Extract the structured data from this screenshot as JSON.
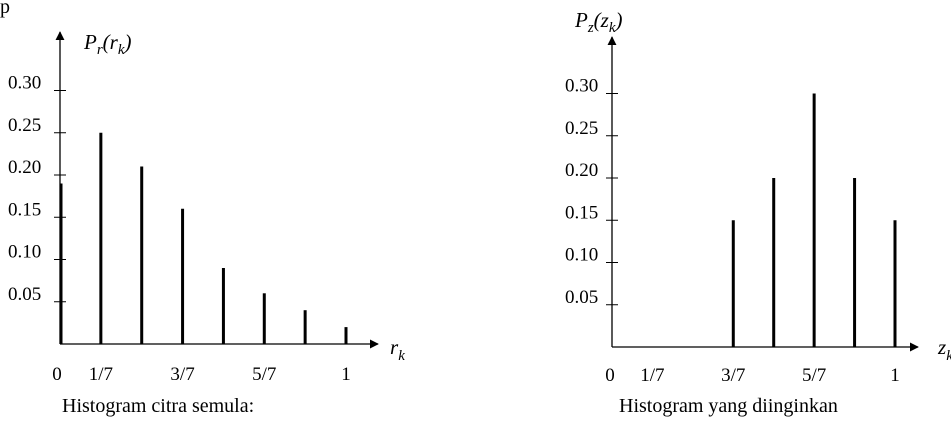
{
  "header_fragment": "p",
  "chart_data": [
    {
      "type": "bar",
      "x": [
        0,
        0.142857,
        0.285714,
        0.428571,
        0.571429,
        0.714286,
        0.857143,
        1
      ],
      "values": [
        0.19,
        0.25,
        0.21,
        0.16,
        0.09,
        0.06,
        0.04,
        0.02
      ],
      "x_ticks": [
        {
          "value": 0,
          "label": "0"
        },
        {
          "value": 0.142857,
          "label": "1/7"
        },
        {
          "value": 0.428571,
          "label": "3/7"
        },
        {
          "value": 0.714286,
          "label": "5/7"
        },
        {
          "value": 1,
          "label": "1"
        }
      ],
      "y_ticks": [
        {
          "value": 0.05,
          "label": "0.05"
        },
        {
          "value": 0.1,
          "label": "0.10"
        },
        {
          "value": 0.15,
          "label": "0.15"
        },
        {
          "value": 0.2,
          "label": "0.20"
        },
        {
          "value": 0.25,
          "label": "0.25"
        },
        {
          "value": 0.3,
          "label": "0.30"
        }
      ],
      "ylabel": {
        "main": "P",
        "sub1": "r",
        "open": "(r",
        "sub2": "k",
        "close": ")"
      },
      "xlabel": {
        "main": "r",
        "sub": "k"
      },
      "caption": "Histogram citra semula:",
      "ylim": [
        0,
        0.33
      ],
      "grid": false
    },
    {
      "type": "bar",
      "x": [
        0.428571,
        0.571429,
        0.714286,
        0.857143,
        1
      ],
      "values": [
        0.15,
        0.2,
        0.3,
        0.2,
        0.15
      ],
      "x_ticks": [
        {
          "value": 0,
          "label": "0"
        },
        {
          "value": 0.142857,
          "label": "1/7"
        },
        {
          "value": 0.428571,
          "label": "3/7"
        },
        {
          "value": 0.714286,
          "label": "5/7"
        },
        {
          "value": 1,
          "label": "1"
        }
      ],
      "y_ticks": [
        {
          "value": 0.05,
          "label": "0.05"
        },
        {
          "value": 0.1,
          "label": "0.10"
        },
        {
          "value": 0.15,
          "label": "0.15"
        },
        {
          "value": 0.2,
          "label": "0.20"
        },
        {
          "value": 0.25,
          "label": "0.25"
        },
        {
          "value": 0.3,
          "label": "0.30"
        }
      ],
      "ylabel": {
        "main": "P",
        "sub1": "z",
        "open": "(z",
        "sub2": "k",
        "close": ")"
      },
      "xlabel": {
        "main": "z",
        "sub": "k"
      },
      "caption": "Histogram yang diinginkan",
      "ylim": [
        0,
        0.33
      ],
      "grid": false
    }
  ]
}
